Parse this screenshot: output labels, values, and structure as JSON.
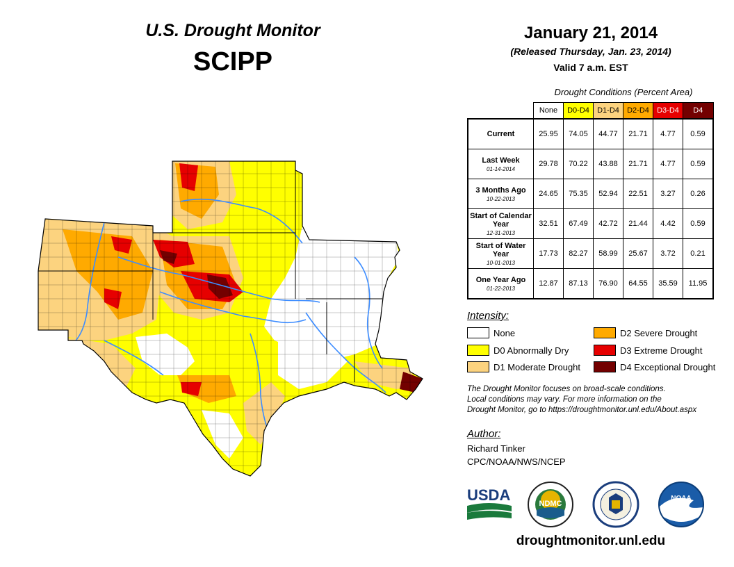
{
  "header": {
    "title": "U.S. Drought Monitor",
    "region": "SCIPP"
  },
  "date_block": {
    "date": "January 21, 2014",
    "released": "(Released Thursday, Jan. 23, 2014)",
    "valid": "Valid 7 a.m. EST"
  },
  "table": {
    "caption": "Drought Conditions (Percent Area)",
    "columns": [
      {
        "label": "None",
        "color": "#ffffff",
        "text_color": "#000000"
      },
      {
        "label": "D0-D4",
        "color": "#ffff00",
        "text_color": "#000000"
      },
      {
        "label": "D1-D4",
        "color": "#fcd37f",
        "text_color": "#000000"
      },
      {
        "label": "D2-D4",
        "color": "#ffaa00",
        "text_color": "#000000"
      },
      {
        "label": "D3-D4",
        "color": "#e60000",
        "text_color": "#ffffff"
      },
      {
        "label": "D4",
        "color": "#730000",
        "text_color": "#ffffff"
      }
    ],
    "rows": [
      {
        "label": "Current",
        "sub": "",
        "values": [
          "25.95",
          "74.05",
          "44.77",
          "21.71",
          "4.77",
          "0.59"
        ]
      },
      {
        "label": "Last Week",
        "sub": "01-14-2014",
        "values": [
          "29.78",
          "70.22",
          "43.88",
          "21.71",
          "4.77",
          "0.59"
        ]
      },
      {
        "label": "3 Months Ago",
        "sub": "10-22-2013",
        "values": [
          "24.65",
          "75.35",
          "52.94",
          "22.51",
          "3.27",
          "0.26"
        ]
      },
      {
        "label": "Start of Calendar Year",
        "sub": "12-31-2013",
        "values": [
          "32.51",
          "67.49",
          "42.72",
          "21.44",
          "4.42",
          "0.59"
        ]
      },
      {
        "label": "Start of Water Year",
        "sub": "10-01-2013",
        "values": [
          "17.73",
          "82.27",
          "58.99",
          "25.67",
          "3.72",
          "0.21"
        ]
      },
      {
        "label": "One Year Ago",
        "sub": "01-22-2013",
        "values": [
          "12.87",
          "87.13",
          "76.90",
          "64.55",
          "35.59",
          "11.95"
        ]
      }
    ]
  },
  "legend": {
    "title": "Intensity:",
    "items": [
      {
        "label": "None",
        "color": "#ffffff"
      },
      {
        "label": "D0 Abnormally Dry",
        "color": "#ffff00"
      },
      {
        "label": "D1 Moderate Drought",
        "color": "#fcd37f"
      },
      {
        "label": "D2 Severe Drought",
        "color": "#ffaa00"
      },
      {
        "label": "D3 Extreme Drought",
        "color": "#e60000"
      },
      {
        "label": "D4 Exceptional Drought",
        "color": "#730000"
      }
    ]
  },
  "disclaimer": [
    "The Drought Monitor focuses on broad-scale conditions.",
    "Local conditions may vary. For more information on the",
    "Drought Monitor, go to https://droughtmonitor.unl.edu/About.aspx"
  ],
  "author": {
    "title": "Author:",
    "name": "Richard Tinker",
    "org": "CPC/NOAA/NWS/NCEP"
  },
  "logos": {
    "usda": "USDA",
    "ndmc": "NDMC",
    "noaa": "NOAA"
  },
  "footer": {
    "url": "droughtmonitor.unl.edu"
  },
  "colors": {
    "none": "#ffffff",
    "d0": "#ffff00",
    "d1": "#fcd37f",
    "d2": "#ffaa00",
    "d3": "#e60000",
    "d4": "#730000",
    "river": "#3c8cff"
  }
}
